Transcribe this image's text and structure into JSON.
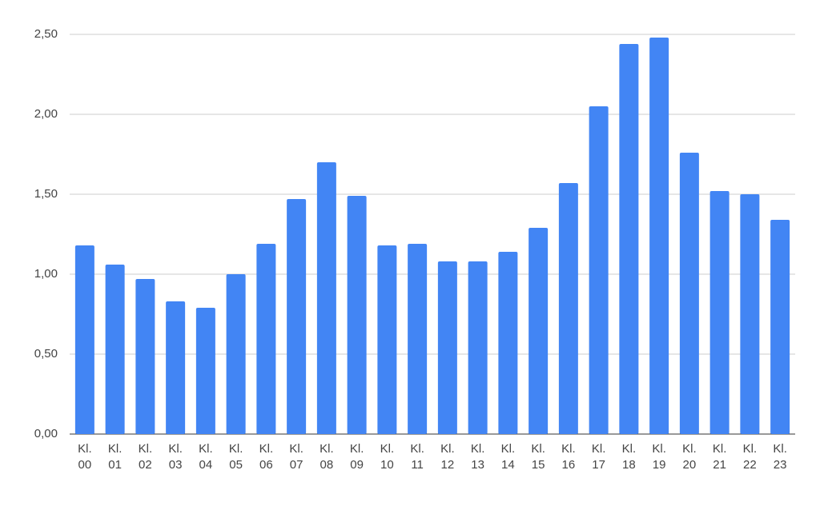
{
  "chart_data": {
    "type": "bar",
    "categories": [
      "Kl. 00",
      "Kl. 01",
      "Kl. 02",
      "Kl. 03",
      "Kl. 04",
      "Kl. 05",
      "Kl. 06",
      "Kl. 07",
      "Kl. 08",
      "Kl. 09",
      "Kl. 10",
      "Kl. 11",
      "Kl. 12",
      "Kl. 13",
      "Kl. 14",
      "Kl. 15",
      "Kl. 16",
      "Kl. 17",
      "Kl. 18",
      "Kl. 19",
      "Kl. 20",
      "Kl. 21",
      "Kl. 22",
      "Kl. 23"
    ],
    "values": [
      1.18,
      1.06,
      0.97,
      0.83,
      0.79,
      1.0,
      1.19,
      1.47,
      1.7,
      1.49,
      1.18,
      1.19,
      1.08,
      1.08,
      1.14,
      1.29,
      1.57,
      2.05,
      2.44,
      2.48,
      1.76,
      1.52,
      1.5,
      1.34
    ],
    "color": "#4285f4",
    "ylim": [
      0,
      2.5
    ],
    "yticks": [
      {
        "value": 0,
        "label": "0,00"
      },
      {
        "value": 0.5,
        "label": "0,50"
      },
      {
        "value": 1,
        "label": "1,00"
      },
      {
        "value": 1.5,
        "label": "1,50"
      },
      {
        "value": 2,
        "label": "2,00"
      },
      {
        "value": 2.5,
        "label": "2,50"
      }
    ],
    "grid": true
  }
}
